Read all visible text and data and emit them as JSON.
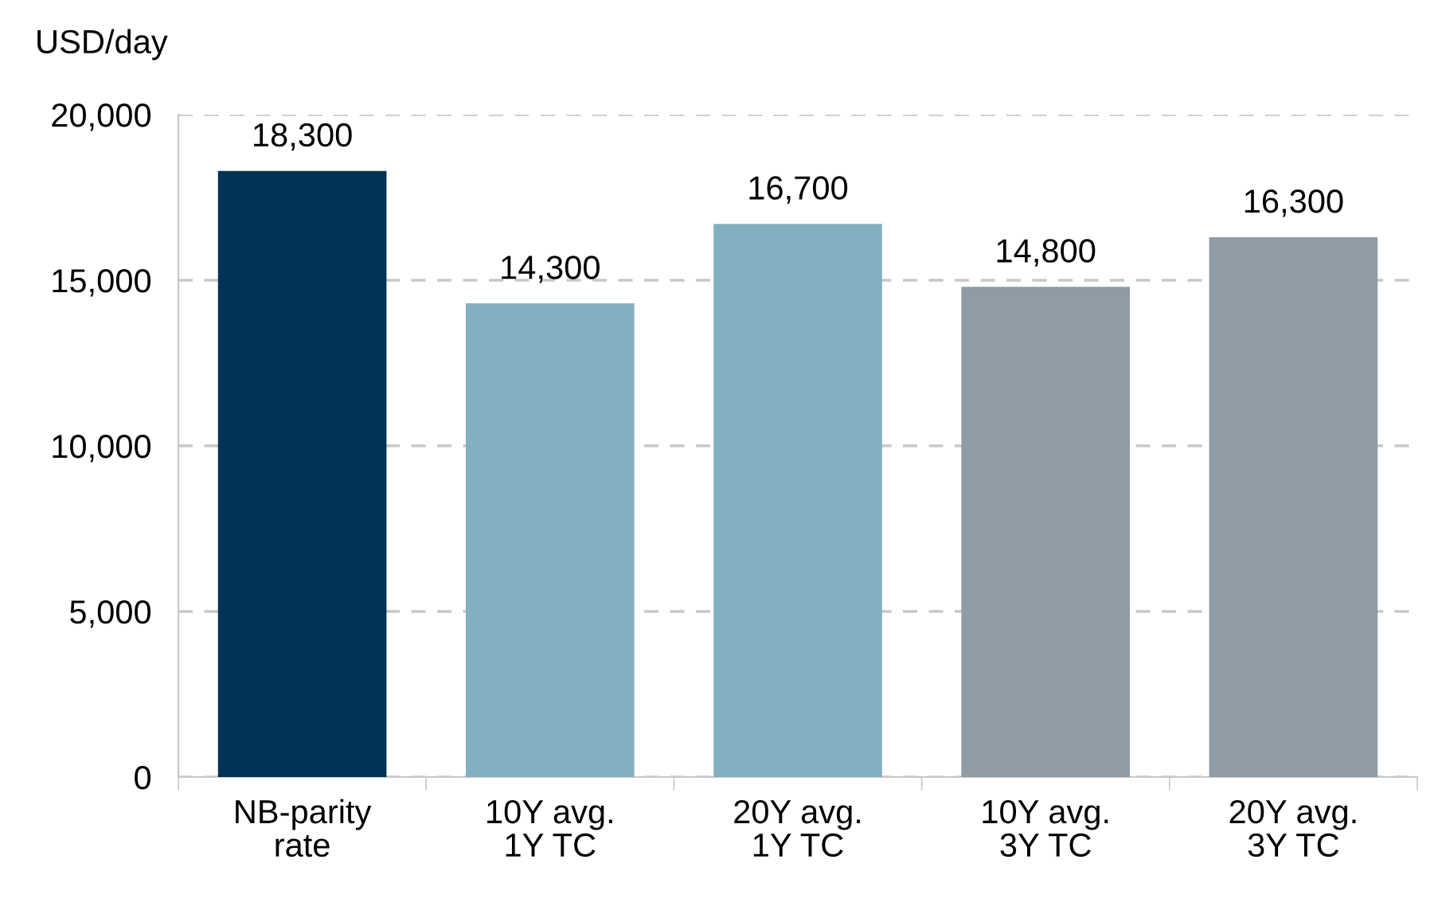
{
  "chart_data": {
    "type": "bar",
    "ylabel": "USD/day",
    "categories": [
      "NB-parity\nrate",
      "10Y avg.\n1Y TC",
      "20Y avg.\n1Y TC",
      "10Y avg.\n3Y TC",
      "20Y avg.\n3Y TC"
    ],
    "values": [
      18300,
      14300,
      16700,
      14800,
      16300
    ],
    "colors": [
      "#023254",
      "#82b0c0",
      "#82b0c0",
      "#8f9ca5",
      "#8f9ca5"
    ],
    "ylim": [
      0,
      20000
    ],
    "yticks": [
      {
        "value": 0,
        "label": "0"
      },
      {
        "value": 5000,
        "label": "5,000"
      },
      {
        "value": 10000,
        "label": "10,000"
      },
      {
        "value": 15000,
        "label": "15,000"
      },
      {
        "value": 20000,
        "label": "20,000"
      }
    ],
    "grid": "y",
    "data_labels": true,
    "value_labels": [
      "18,300",
      "14,300",
      "16,700",
      "14,800",
      "16,300"
    ]
  }
}
